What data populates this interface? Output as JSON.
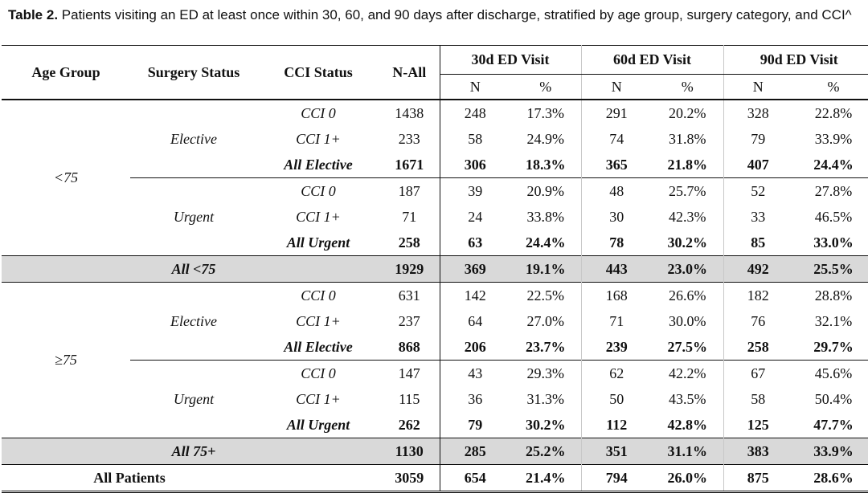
{
  "caption": {
    "label": "Table 2.",
    "text": " Patients visiting an ED at least once within 30, 60, and 90 days after discharge, stratified by age group, surgery category, and CCI^"
  },
  "headers": {
    "age_group": "Age Group",
    "surgery_status": "Surgery Status",
    "cci_status": "CCI Status",
    "n_all": "N-All",
    "ed30": "30d ED Visit",
    "ed60": "60d ED Visit",
    "ed90": "90d ED Visit",
    "n": "N",
    "pct": "%"
  },
  "groups": {
    "under75": "<75",
    "over75": "≥75",
    "elective": "Elective",
    "urgent": "Urgent"
  },
  "rows": [
    {
      "cci": "CCI 0",
      "n_all": "1438",
      "n30": "248",
      "p30": "17.3%",
      "n60": "291",
      "p60": "20.2%",
      "n90": "328",
      "p90": "22.8%"
    },
    {
      "cci": "CCI 1+",
      "n_all": "233",
      "n30": "58",
      "p30": "24.9%",
      "n60": "74",
      "p60": "31.8%",
      "n90": "79",
      "p90": "33.9%"
    },
    {
      "cci": "All Elective",
      "n_all": "1671",
      "n30": "306",
      "p30": "18.3%",
      "n60": "365",
      "p60": "21.8%",
      "n90": "407",
      "p90": "24.4%"
    },
    {
      "cci": "CCI 0",
      "n_all": "187",
      "n30": "39",
      "p30": "20.9%",
      "n60": "48",
      "p60": "25.7%",
      "n90": "52",
      "p90": "27.8%"
    },
    {
      "cci": "CCI 1+",
      "n_all": "71",
      "n30": "24",
      "p30": "33.8%",
      "n60": "30",
      "p60": "42.3%",
      "n90": "33",
      "p90": "46.5%"
    },
    {
      "cci": "All Urgent",
      "n_all": "258",
      "n30": "63",
      "p30": "24.4%",
      "n60": "78",
      "p60": "30.2%",
      "n90": "85",
      "p90": "33.0%"
    },
    {
      "label": "All <75",
      "n_all": "1929",
      "n30": "369",
      "p30": "19.1%",
      "n60": "443",
      "p60": "23.0%",
      "n90": "492",
      "p90": "25.5%"
    },
    {
      "cci": "CCI 0",
      "n_all": "631",
      "n30": "142",
      "p30": "22.5%",
      "n60": "168",
      "p60": "26.6%",
      "n90": "182",
      "p90": "28.8%"
    },
    {
      "cci": "CCI 1+",
      "n_all": "237",
      "n30": "64",
      "p30": "27.0%",
      "n60": "71",
      "p60": "30.0%",
      "n90": "76",
      "p90": "32.1%"
    },
    {
      "cci": "All Elective",
      "n_all": "868",
      "n30": "206",
      "p30": "23.7%",
      "n60": "239",
      "p60": "27.5%",
      "n90": "258",
      "p90": "29.7%"
    },
    {
      "cci": "CCI 0",
      "n_all": "147",
      "n30": "43",
      "p30": "29.3%",
      "n60": "62",
      "p60": "42.2%",
      "n90": "67",
      "p90": "45.6%"
    },
    {
      "cci": "CCI 1+",
      "n_all": "115",
      "n30": "36",
      "p30": "31.3%",
      "n60": "50",
      "p60": "43.5%",
      "n90": "58",
      "p90": "50.4%"
    },
    {
      "cci": "All Urgent",
      "n_all": "262",
      "n30": "79",
      "p30": "30.2%",
      "n60": "112",
      "p60": "42.8%",
      "n90": "125",
      "p90": "47.7%"
    },
    {
      "label": "All 75+",
      "n_all": "1130",
      "n30": "285",
      "p30": "25.2%",
      "n60": "351",
      "p60": "31.1%",
      "n90": "383",
      "p90": "33.9%"
    },
    {
      "label": "All Patients",
      "n_all": "3059",
      "n30": "654",
      "p30": "21.4%",
      "n60": "794",
      "p60": "26.0%",
      "n90": "875",
      "p90": "28.6%"
    }
  ],
  "colors": {
    "subtotal_shade": "#d9d9d9",
    "rule": "#111111"
  }
}
